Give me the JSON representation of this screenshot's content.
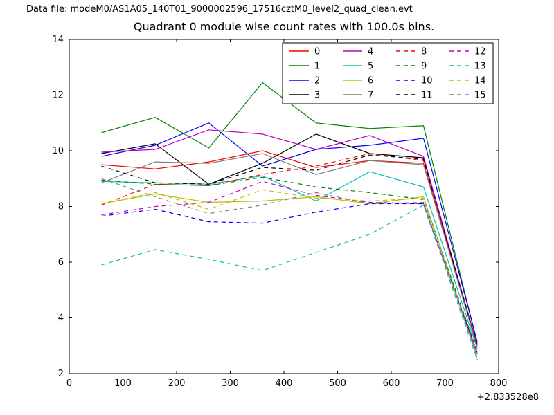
{
  "window": {
    "background": "#ffffff"
  },
  "header": {
    "data_file_label": "Data file: modeM0/AS1A05_140T01_9000002596_17516cztM0_level2_quad_clean.evt"
  },
  "chart_data": {
    "type": "line",
    "title": "Quadrant 0 module wise count rates with 100.0s bins.",
    "xlabel": "",
    "ylabel": "",
    "x_offset_label": "+2.833528e8",
    "xlim": [
      0,
      800
    ],
    "ylim": [
      2,
      14
    ],
    "x_ticks": [
      0,
      100,
      200,
      300,
      400,
      500,
      600,
      700,
      800
    ],
    "y_ticks": [
      2,
      4,
      6,
      8,
      10,
      12,
      14
    ],
    "grid": false,
    "legend_position": "upper center-right",
    "axis_color": "#000000",
    "x": [
      60,
      160,
      260,
      360,
      460,
      560,
      660,
      760
    ],
    "series": [
      {
        "name": "0",
        "color": "#ff0000",
        "style": "solid",
        "values": [
          9.5,
          9.35,
          9.6,
          10.0,
          9.4,
          9.65,
          9.55,
          3.05
        ]
      },
      {
        "name": "1",
        "color": "#007f00",
        "style": "solid",
        "values": [
          10.65,
          11.2,
          10.1,
          12.45,
          11.0,
          10.8,
          10.9,
          3.1
        ]
      },
      {
        "name": "2",
        "color": "#0000ff",
        "style": "solid",
        "values": [
          9.8,
          10.2,
          11.0,
          9.45,
          10.05,
          10.2,
          10.45,
          3.15
        ]
      },
      {
        "name": "3",
        "color": "#000000",
        "style": "solid",
        "values": [
          9.9,
          10.25,
          8.8,
          9.55,
          10.6,
          9.9,
          9.75,
          3.0
        ]
      },
      {
        "name": "4",
        "color": "#bf00bf",
        "style": "solid",
        "values": [
          9.95,
          10.05,
          10.75,
          10.6,
          10.05,
          10.55,
          9.8,
          3.0
        ]
      },
      {
        "name": "5",
        "color": "#00bfbf",
        "style": "solid",
        "values": [
          8.9,
          8.85,
          8.8,
          9.1,
          8.2,
          9.25,
          8.7,
          2.9
        ]
      },
      {
        "name": "6",
        "color": "#bfbf00",
        "style": "solid",
        "values": [
          8.1,
          8.45,
          8.15,
          8.2,
          8.35,
          8.1,
          8.35,
          2.6
        ]
      },
      {
        "name": "7",
        "color": "#7f7f7f",
        "style": "solid",
        "values": [
          8.85,
          9.6,
          9.55,
          9.9,
          9.15,
          9.65,
          9.5,
          2.95
        ]
      },
      {
        "name": "8",
        "color": "#ff0000",
        "style": "dashed",
        "values": [
          8.05,
          8.8,
          8.75,
          9.15,
          9.45,
          9.9,
          9.65,
          3.05
        ]
      },
      {
        "name": "9",
        "color": "#007f00",
        "style": "dashed",
        "values": [
          8.95,
          8.8,
          8.75,
          9.05,
          8.7,
          8.5,
          8.25,
          2.8
        ]
      },
      {
        "name": "10",
        "color": "#0000ff",
        "style": "dashed",
        "values": [
          7.65,
          7.9,
          7.45,
          7.4,
          7.8,
          8.1,
          8.1,
          2.75
        ]
      },
      {
        "name": "11",
        "color": "#000000",
        "style": "dashed",
        "values": [
          9.45,
          8.85,
          8.8,
          9.4,
          9.3,
          9.85,
          9.7,
          3.0
        ]
      },
      {
        "name": "12",
        "color": "#bf00bf",
        "style": "dashed",
        "values": [
          7.7,
          8.0,
          8.15,
          8.9,
          8.4,
          8.15,
          8.1,
          2.7
        ]
      },
      {
        "name": "13",
        "color": "#00bfbf",
        "style": "dashed",
        "values": [
          5.9,
          6.45,
          6.1,
          5.7,
          6.35,
          7.0,
          8.05,
          2.5
        ]
      },
      {
        "name": "14",
        "color": "#bfbf00",
        "style": "dashed",
        "values": [
          8.1,
          8.5,
          7.9,
          8.6,
          8.3,
          8.2,
          8.3,
          2.55
        ]
      },
      {
        "name": "15",
        "color": "#7f7f7f",
        "style": "dashed",
        "values": [
          9.0,
          8.35,
          7.75,
          8.05,
          8.5,
          8.1,
          8.15,
          2.6
        ]
      }
    ]
  }
}
